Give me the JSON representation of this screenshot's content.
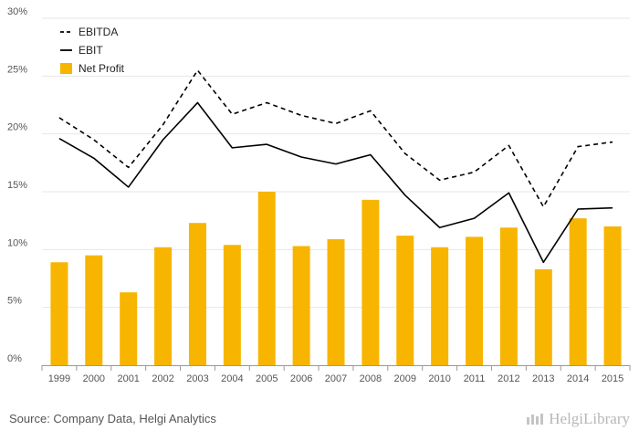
{
  "chart_data": {
    "type": "bar",
    "categories": [
      "1999",
      "2000",
      "2001",
      "2002",
      "2003",
      "2004",
      "2005",
      "2006",
      "2007",
      "2008",
      "2009",
      "2010",
      "2011",
      "2012",
      "2013",
      "2014",
      "2015"
    ],
    "series": [
      {
        "name": "EBITDA",
        "kind": "line",
        "style": "dashed",
        "color": "#000000",
        "values": [
          21.4,
          19.5,
          17.1,
          20.8,
          25.5,
          21.7,
          22.7,
          21.6,
          20.9,
          22.0,
          18.3,
          16.0,
          16.7,
          19.0,
          13.7,
          18.9,
          19.3
        ]
      },
      {
        "name": "EBIT",
        "kind": "line",
        "style": "solid",
        "color": "#000000",
        "values": [
          19.6,
          17.9,
          15.4,
          19.5,
          22.7,
          18.8,
          19.1,
          18.0,
          17.4,
          18.2,
          14.7,
          11.9,
          12.7,
          14.9,
          8.9,
          13.5,
          13.6
        ]
      },
      {
        "name": "Net Profit",
        "kind": "bar",
        "color": "#f7b500",
        "values": [
          8.9,
          9.5,
          6.3,
          10.2,
          12.3,
          10.4,
          15.0,
          10.3,
          10.9,
          14.3,
          11.2,
          10.2,
          11.1,
          11.9,
          8.3,
          12.7,
          12.0
        ]
      }
    ],
    "y_ticks": [
      "0%",
      "5%",
      "10%",
      "15%",
      "20%",
      "25%",
      "30%"
    ],
    "ylim": [
      0,
      30
    ],
    "grid": true,
    "legend_position": "top-left"
  },
  "source_text": "Source: Company Data, Helgi Analytics",
  "logo_text": "HelgiLibrary"
}
